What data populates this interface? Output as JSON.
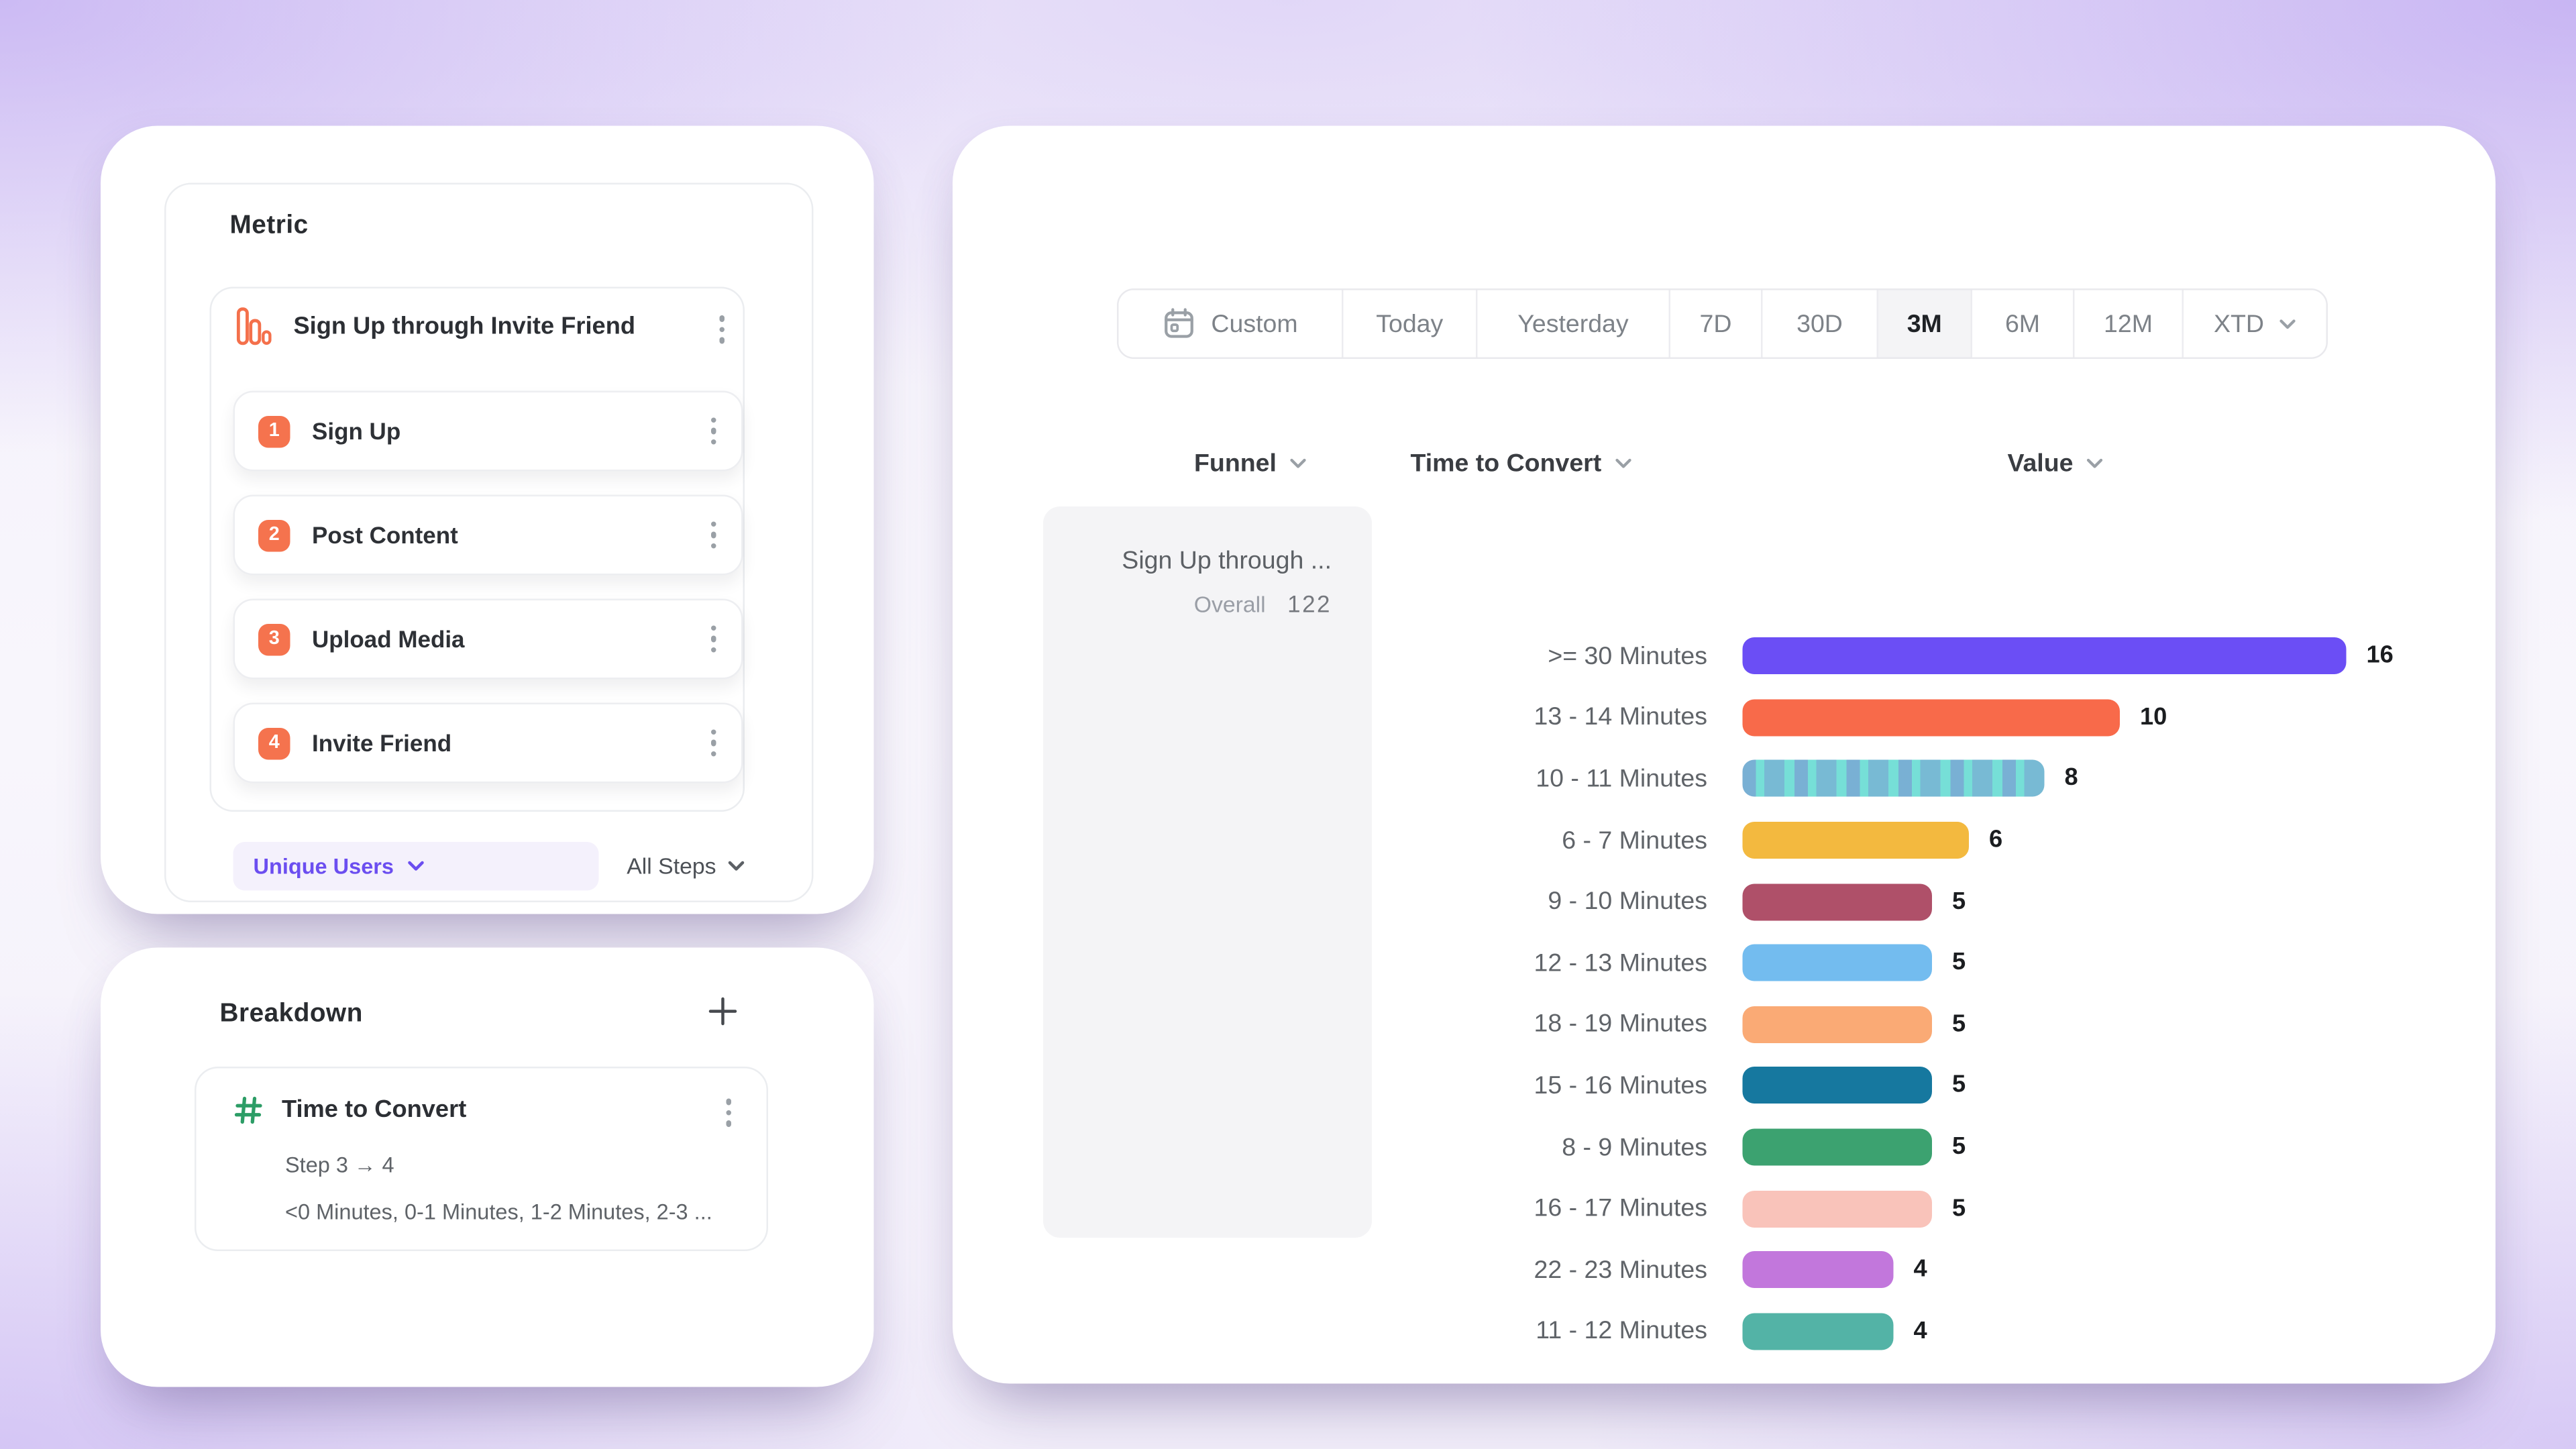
{
  "metric_panel": {
    "title": "Metric",
    "funnel_name": "Sign Up through Invite Friend",
    "steps": [
      {
        "num": "1",
        "label": "Sign Up"
      },
      {
        "num": "2",
        "label": "Post Content"
      },
      {
        "num": "3",
        "label": "Upload Media"
      },
      {
        "num": "4",
        "label": "Invite Friend"
      }
    ],
    "counting_label": "Unique Users",
    "steps_filter_label": "All Steps"
  },
  "breakdown_panel": {
    "title": "Breakdown",
    "item_name": "Time to Convert",
    "item_step_range": "Step 3 → 4",
    "item_buckets": "<0 Minutes, 0-1 Minutes, 1-2 Minutes, 2-3 ..."
  },
  "report_panel": {
    "date_ranges": [
      {
        "label": "Custom"
      },
      {
        "label": "Today"
      },
      {
        "label": "Yesterday"
      },
      {
        "label": "7D"
      },
      {
        "label": "30D"
      },
      {
        "label": "3M",
        "selected": true
      },
      {
        "label": "6M"
      },
      {
        "label": "12M"
      },
      {
        "label": "XTD"
      }
    ],
    "selected_range": "3M",
    "columns": {
      "funnel": "Funnel",
      "time_to_convert": "Time to Convert",
      "value": "Value"
    },
    "funnel_cell": {
      "name": "Sign Up through ...",
      "overall_label": "Overall",
      "overall_value": "122"
    }
  },
  "chart_data": {
    "type": "bar",
    "orientation": "horizontal",
    "title": "Time to Convert distribution",
    "categories": [
      ">= 30 Minutes",
      "13 - 14 Minutes",
      "10 - 11 Minutes",
      "6 - 7 Minutes",
      "9 - 10 Minutes",
      "12 - 13 Minutes",
      "18 - 19 Minutes",
      "15 - 16 Minutes",
      "8 - 9 Minutes",
      "16 - 17 Minutes",
      "22 - 23 Minutes",
      "11 - 12 Minutes"
    ],
    "values": [
      16,
      10,
      8,
      6,
      5,
      5,
      5,
      5,
      5,
      5,
      4,
      4
    ],
    "colors": [
      "#6B4EF5",
      "#F86A4A",
      "#76DFD7",
      "#F3B93F",
      "#AF5069",
      "#73BCEF",
      "#FAAA75",
      "#16789F",
      "#3CA270",
      "#F9C3BA",
      "#C277DC",
      "#53B3A6"
    ],
    "patterned_category": "10 - 11 Minutes",
    "max_value": 16,
    "xlim": [
      0,
      16
    ],
    "grid": false,
    "legend": false
  },
  "colors": {
    "accent_purple": "#6B4EF0",
    "step_badge_orange": "#F5734E",
    "funnel_icon_orange": "#F4704B",
    "hash_icon_green": "#2C9D66"
  }
}
